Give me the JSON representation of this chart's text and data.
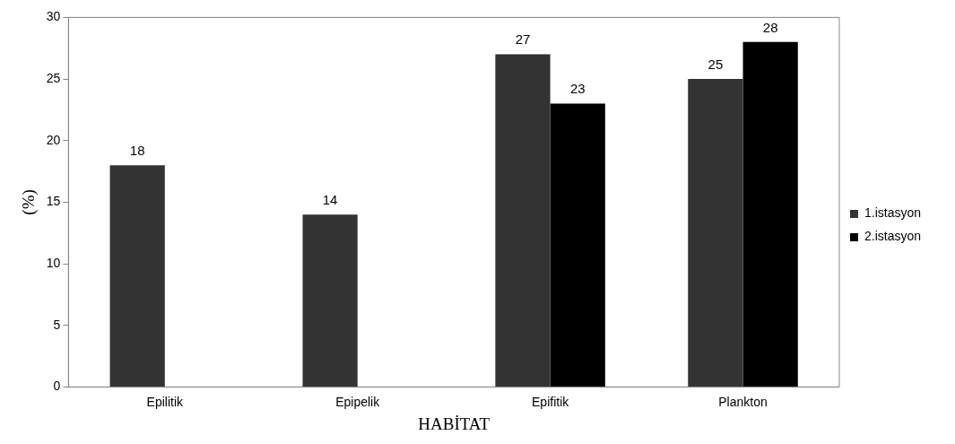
{
  "chart_data": {
    "type": "bar",
    "xlabel": "HABİTAT",
    "ylabel": "(%)",
    "categories": [
      "Epilitik",
      "Epipelik",
      "Epifitik",
      "Plankton"
    ],
    "series": [
      {
        "name": "1.istasyon",
        "color": "#333333",
        "values": [
          18,
          14,
          27,
          25
        ]
      },
      {
        "name": "2.istasyon",
        "color": "#000000",
        "values": [
          null,
          null,
          23,
          28
        ]
      }
    ],
    "ylim": [
      0,
      30
    ],
    "yticks": [
      0,
      5,
      10,
      15,
      20,
      25,
      30
    ],
    "grid": false,
    "legend": "right",
    "data_labels": true
  }
}
